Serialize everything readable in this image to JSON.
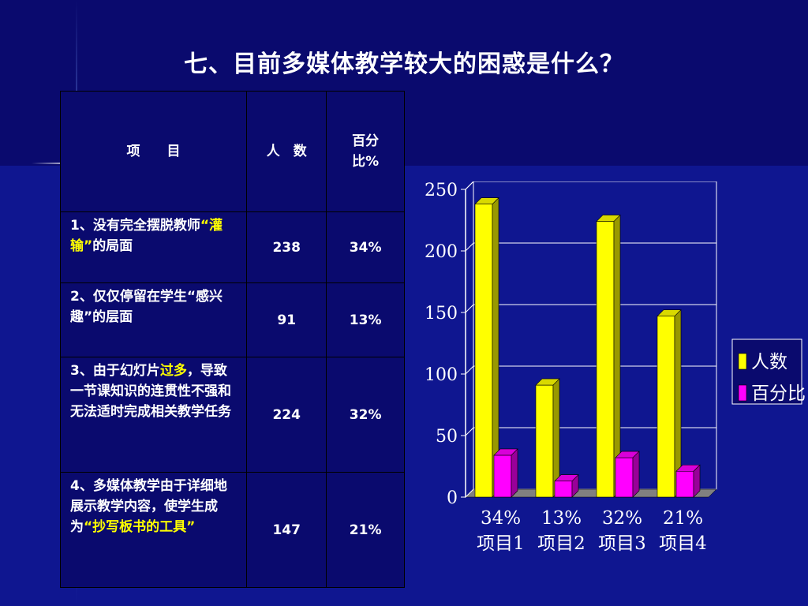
{
  "title": "七、目前多媒体教学较大的困惑是什么？",
  "table": {
    "headers": {
      "item": "项　　目",
      "count": "人　数",
      "pct": "百分比%"
    },
    "rows": [
      {
        "text_a": "1、没有完全摆脱教师",
        "text_hl": "“灌输”",
        "text_b": "的局面",
        "hl_color": "#ffff00",
        "count": "238",
        "pct": "34%"
      },
      {
        "text_a": "2、仅仅停留在学生“感兴趣”的层面",
        "text_hl": "",
        "text_b": "",
        "hl_color": "#ffff00",
        "count": "91",
        "pct": "13%"
      },
      {
        "text_a": "3、由于幻灯片",
        "text_hl": "过多",
        "text_b": "，导致一节课知识的连贯性不强和无法适时完成相关教学任务",
        "hl_color": "#ffff00",
        "count": "224",
        "pct": "32%"
      },
      {
        "text_a": "4、多媒体教学由于详细地展示教学内容，使学生成为",
        "text_hl": "“抄写板书的工具”",
        "text_b": "",
        "hl_color": "#ffff00",
        "count": "147",
        "pct": "21%"
      }
    ]
  },
  "chart_data": {
    "type": "bar",
    "categories": [
      "34%\n项目1",
      "13%\n项目2",
      "32%\n项目3",
      "21%\n项目4"
    ],
    "category_lines": [
      [
        "34%",
        "项目1"
      ],
      [
        "13%",
        "项目2"
      ],
      [
        "32%",
        "项目3"
      ],
      [
        "21%",
        "项目4"
      ]
    ],
    "series": [
      {
        "name": "人数",
        "values": [
          238,
          91,
          224,
          147
        ],
        "color": "#ffff00"
      },
      {
        "name": "百分比",
        "values": [
          34,
          13,
          32,
          21
        ],
        "color": "#ff00ff"
      }
    ],
    "ylim": [
      0,
      250
    ],
    "yticks": [
      "0",
      "50",
      "100",
      "150",
      "200",
      "250"
    ],
    "grid": true,
    "legend_position": "right",
    "style": "3d-column"
  }
}
